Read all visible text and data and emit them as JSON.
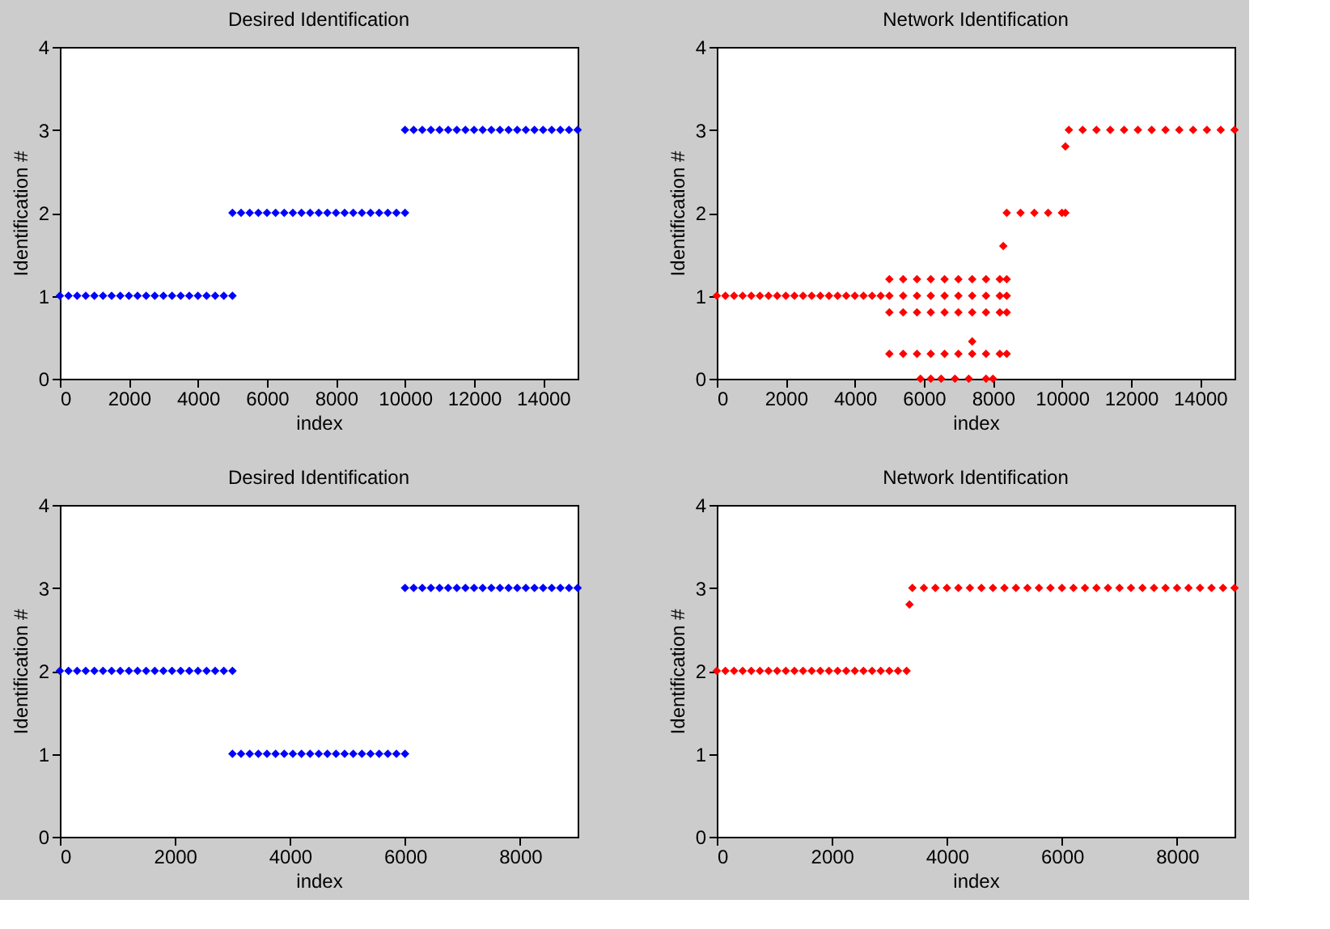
{
  "chart_data": [
    {
      "type": "scatter",
      "title": "Desired Identification",
      "xlabel": "index",
      "ylabel": "Identification #",
      "xlim": [
        0,
        15000
      ],
      "xticks": [
        0,
        2000,
        4000,
        6000,
        8000,
        10000,
        12000,
        14000
      ],
      "ylim": [
        0,
        4
      ],
      "yticks": [
        0,
        1,
        2,
        3,
        4
      ],
      "grid": false,
      "marker": "diamond",
      "series": [
        {
          "color": "#0000ff",
          "x": [
            0,
            250,
            500,
            750,
            1000,
            1250,
            1500,
            1750,
            2000,
            2250,
            2500,
            2750,
            3000,
            3250,
            3500,
            3750,
            4000,
            4250,
            4500,
            4750,
            5000,
            5000,
            5250,
            5500,
            5750,
            6000,
            6250,
            6500,
            6750,
            7000,
            7250,
            7500,
            7750,
            8000,
            8250,
            8500,
            8750,
            9000,
            9250,
            9500,
            9750,
            10000,
            10000,
            10250,
            10500,
            10750,
            11000,
            11250,
            11500,
            11750,
            12000,
            12250,
            12500,
            12750,
            13000,
            13250,
            13500,
            13750,
            14000,
            14250,
            14500,
            14750,
            15000
          ],
          "values": [
            1,
            1,
            1,
            1,
            1,
            1,
            1,
            1,
            1,
            1,
            1,
            1,
            1,
            1,
            1,
            1,
            1,
            1,
            1,
            1,
            1,
            2,
            2,
            2,
            2,
            2,
            2,
            2,
            2,
            2,
            2,
            2,
            2,
            2,
            2,
            2,
            2,
            2,
            2,
            2,
            2,
            2,
            3,
            3,
            3,
            3,
            3,
            3,
            3,
            3,
            3,
            3,
            3,
            3,
            3,
            3,
            3,
            3,
            3,
            3,
            3,
            3,
            3
          ]
        }
      ]
    },
    {
      "type": "scatter",
      "title": "Network Identification",
      "xlabel": "index",
      "ylabel": "Identification #",
      "xlim": [
        0,
        15000
      ],
      "xticks": [
        0,
        2000,
        4000,
        6000,
        8000,
        10000,
        12000,
        14000
      ],
      "ylim": [
        0,
        4
      ],
      "yticks": [
        0,
        1,
        2,
        3,
        4
      ],
      "grid": false,
      "marker": "diamond",
      "series": [
        {
          "color": "#ff0000",
          "x": [
            0,
            250,
            500,
            750,
            1000,
            1250,
            1500,
            1750,
            2000,
            2250,
            2500,
            2750,
            3000,
            3250,
            3500,
            3750,
            4000,
            4250,
            4500,
            4750,
            5000,
            5400,
            5800,
            6200,
            6600,
            7000,
            7400,
            7800,
            8200,
            8400,
            5000,
            5400,
            5800,
            6200,
            6600,
            7000,
            7400,
            7800,
            8200,
            8400,
            5000,
            5400,
            5800,
            6200,
            6600,
            7000,
            7400,
            7800,
            8200,
            8400,
            5000,
            5400,
            5800,
            6200,
            6600,
            7000,
            7400,
            7800,
            8200,
            8400,
            5900,
            6200,
            6500,
            6900,
            7300,
            7800,
            8000,
            7400,
            8300,
            8400,
            8800,
            9200,
            9600,
            10000,
            10100,
            10100,
            10200,
            10600,
            11000,
            11400,
            11800,
            12200,
            12600,
            13000,
            13400,
            13800,
            14200,
            14600,
            15000
          ],
          "values": [
            1,
            1,
            1,
            1,
            1,
            1,
            1,
            1,
            1,
            1,
            1,
            1,
            1,
            1,
            1,
            1,
            1,
            1,
            1,
            1,
            1.2,
            1.2,
            1.2,
            1.2,
            1.2,
            1.2,
            1.2,
            1.2,
            1.2,
            1.2,
            1,
            1,
            1,
            1,
            1,
            1,
            1,
            1,
            1,
            1,
            0.8,
            0.8,
            0.8,
            0.8,
            0.8,
            0.8,
            0.8,
            0.8,
            0.8,
            0.8,
            0.3,
            0.3,
            0.3,
            0.3,
            0.3,
            0.3,
            0.3,
            0.3,
            0.3,
            0.3,
            0,
            0,
            0,
            0,
            0,
            0,
            0,
            0.45,
            1.6,
            2,
            2,
            2,
            2,
            2,
            2,
            2.8,
            3,
            3,
            3,
            3,
            3,
            3,
            3,
            3,
            3,
            3,
            3,
            3,
            3
          ]
        }
      ]
    },
    {
      "type": "scatter",
      "title": "Desired Identification",
      "xlabel": "index",
      "ylabel": "Identification #",
      "xlim": [
        0,
        9000
      ],
      "xticks": [
        0,
        2000,
        4000,
        6000,
        8000
      ],
      "ylim": [
        0,
        4
      ],
      "yticks": [
        0,
        1,
        2,
        3,
        4
      ],
      "grid": false,
      "marker": "diamond",
      "series": [
        {
          "color": "#0000ff",
          "x": [
            0,
            150,
            300,
            450,
            600,
            750,
            900,
            1050,
            1200,
            1350,
            1500,
            1650,
            1800,
            1950,
            2100,
            2250,
            2400,
            2550,
            2700,
            2850,
            3000,
            3000,
            3150,
            3300,
            3450,
            3600,
            3750,
            3900,
            4050,
            4200,
            4350,
            4500,
            4650,
            4800,
            4950,
            5100,
            5250,
            5400,
            5550,
            5700,
            5850,
            6000,
            6000,
            6150,
            6300,
            6450,
            6600,
            6750,
            6900,
            7050,
            7200,
            7350,
            7500,
            7650,
            7800,
            7950,
            8100,
            8250,
            8400,
            8550,
            8700,
            8850,
            9000
          ],
          "values": [
            2,
            2,
            2,
            2,
            2,
            2,
            2,
            2,
            2,
            2,
            2,
            2,
            2,
            2,
            2,
            2,
            2,
            2,
            2,
            2,
            2,
            1,
            1,
            1,
            1,
            1,
            1,
            1,
            1,
            1,
            1,
            1,
            1,
            1,
            1,
            1,
            1,
            1,
            1,
            1,
            1,
            1,
            3,
            3,
            3,
            3,
            3,
            3,
            3,
            3,
            3,
            3,
            3,
            3,
            3,
            3,
            3,
            3,
            3,
            3,
            3,
            3,
            3
          ]
        }
      ]
    },
    {
      "type": "scatter",
      "title": "Network Identification",
      "xlabel": "index",
      "ylabel": "Identification #",
      "xlim": [
        0,
        9000
      ],
      "xticks": [
        0,
        2000,
        4000,
        6000,
        8000
      ],
      "ylim": [
        0,
        4
      ],
      "yticks": [
        0,
        1,
        2,
        3,
        4
      ],
      "grid": false,
      "marker": "diamond",
      "series": [
        {
          "color": "#ff0000",
          "x": [
            0,
            150,
            300,
            450,
            600,
            750,
            900,
            1050,
            1200,
            1350,
            1500,
            1650,
            1800,
            1950,
            2100,
            2250,
            2400,
            2550,
            2700,
            2850,
            3000,
            3150,
            3300,
            3350,
            3400,
            3600,
            3800,
            4000,
            4200,
            4400,
            4600,
            4800,
            5000,
            5200,
            5400,
            5600,
            5800,
            6000,
            6200,
            6400,
            6600,
            6800,
            7000,
            7200,
            7400,
            7600,
            7800,
            8000,
            8200,
            8400,
            8600,
            8800,
            9000
          ],
          "values": [
            2,
            2,
            2,
            2,
            2,
            2,
            2,
            2,
            2,
            2,
            2,
            2,
            2,
            2,
            2,
            2,
            2,
            2,
            2,
            2,
            2,
            2,
            2,
            2.8,
            3,
            3,
            3,
            3,
            3,
            3,
            3,
            3,
            3,
            3,
            3,
            3,
            3,
            3,
            3,
            3,
            3,
            3,
            3,
            3,
            3,
            3,
            3,
            3,
            3,
            3,
            3,
            3,
            3
          ]
        }
      ]
    }
  ]
}
